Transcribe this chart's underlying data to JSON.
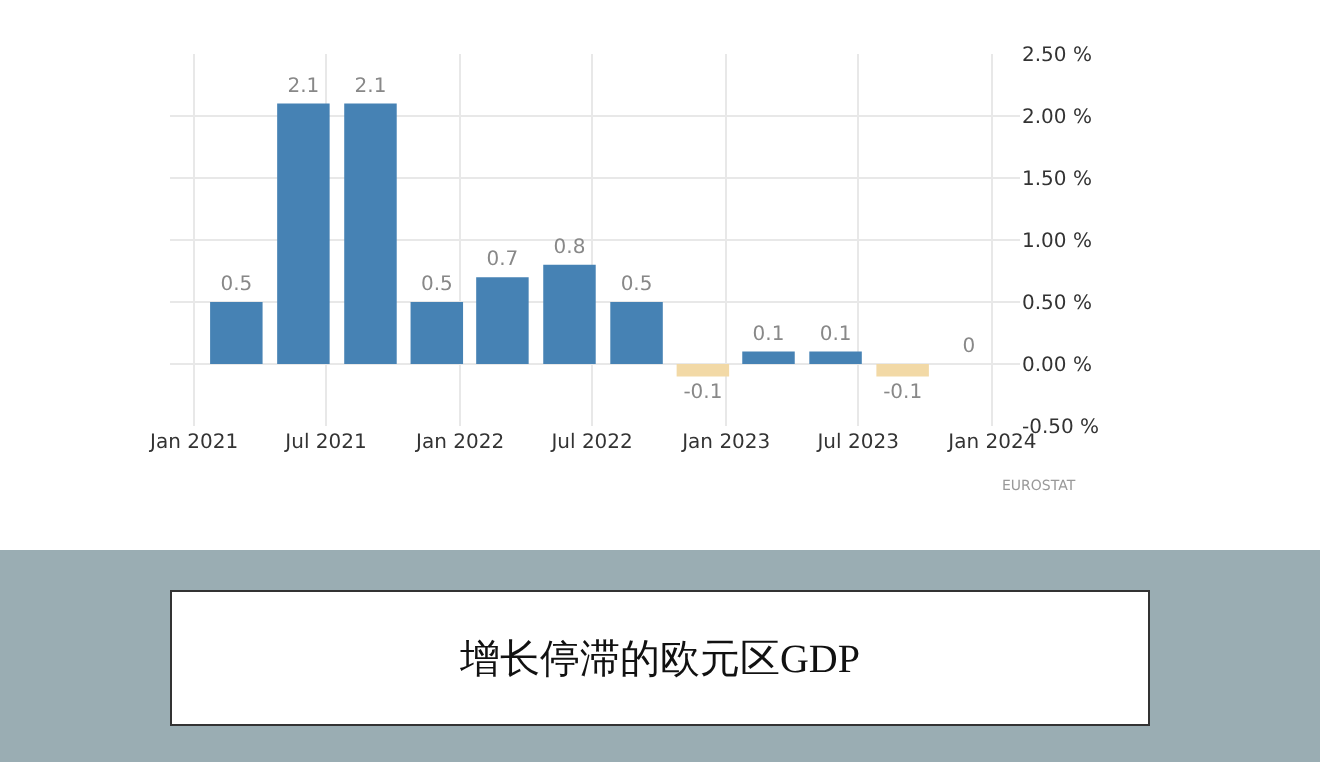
{
  "chart_data": {
    "type": "bar",
    "title": "增长停滞的欧元区GDP",
    "x": [
      "2021-02-28",
      "2021-05-31",
      "2021-08-31",
      "2021-11-30",
      "2022-02-28",
      "2022-05-31",
      "2022-08-31",
      "2022-11-30",
      "2023-02-28",
      "2023-05-31",
      "2023-08-31",
      "2023-11-30"
    ],
    "values": [
      0.5,
      2.1,
      2.1,
      0.5,
      0.7,
      0.8,
      0.5,
      -0.1,
      0.1,
      0.1,
      -0.1,
      0
    ],
    "colors": [
      "#4682b4",
      "#4682b4",
      "#4682b4",
      "#4682b4",
      "#4682b4",
      "#4682b4",
      "#4682b4",
      "#f2d9a6",
      "#4682b4",
      "#4682b4",
      "#f2d9a6",
      "#4682b4"
    ],
    "data_labels": true,
    "xlim": [
      "2020-11-29",
      "2024-02-08"
    ],
    "xticks": [
      {
        "value": "2021-01-01",
        "label": "Jan 2021"
      },
      {
        "value": "2021-07-01",
        "label": "Jul 2021"
      },
      {
        "value": "2022-01-01",
        "label": "Jan 2022"
      },
      {
        "value": "2022-07-01",
        "label": "Jul 2022"
      },
      {
        "value": "2023-01-01",
        "label": "Jan 2023"
      },
      {
        "value": "2023-07-01",
        "label": "Jul 2023"
      },
      {
        "value": "2024-01-01",
        "label": "Jan 2024"
      }
    ],
    "ylim": [
      -0.5,
      2.5
    ],
    "yticks": [
      {
        "value": -0.5,
        "label": "-0.50 %"
      },
      {
        "value": 0,
        "label": "0.00 %"
      },
      {
        "value": 0.5,
        "label": "0.50 %"
      },
      {
        "value": 1,
        "label": "1.00 %"
      },
      {
        "value": 1.5,
        "label": "1.50 %"
      },
      {
        "value": 2,
        "label": "2.00 %"
      },
      {
        "value": 2.5,
        "label": "2.50 %"
      }
    ],
    "grid": true,
    "annotations": [
      "EUROSTAT"
    ]
  }
}
